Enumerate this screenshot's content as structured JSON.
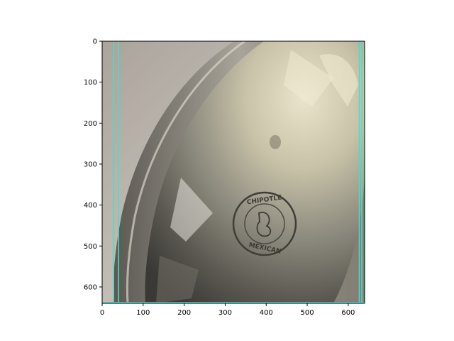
{
  "plot": {
    "x_ticks": [
      0,
      100,
      200,
      300,
      400,
      500,
      600
    ],
    "y_ticks": [
      0,
      100,
      200,
      300,
      400,
      500,
      600
    ],
    "x_range": [
      0,
      640
    ],
    "y_range": [
      640,
      0
    ],
    "y_axis_inverted": true,
    "image_content": "photograph of a crumpled aluminum foil lid on a round takeout container, lit from the upper right, with an embossed circular logo",
    "overlay_lines": [
      {
        "orientation": "vertical",
        "x": 28,
        "color": "#40e0d0"
      },
      {
        "orientation": "vertical",
        "x": 40,
        "color": "#40e0d0"
      },
      {
        "orientation": "vertical",
        "x": 627,
        "color": "#40e0d0"
      },
      {
        "orientation": "vertical",
        "x": 633,
        "color": "#40e0d0"
      },
      {
        "orientation": "horizontal",
        "y": 638,
        "color": "#40e0d0"
      }
    ]
  },
  "photo": {
    "embossed_text_top": "CHIPOTLE",
    "embossed_text_bottom": "MEXICAN"
  },
  "colors": {
    "background_wall": "#b4aea6",
    "foil_light": "#d8d2bc",
    "foil_mid": "#9c9889",
    "foil_dark": "#4b4a44",
    "overlay": "#40e0d0"
  }
}
